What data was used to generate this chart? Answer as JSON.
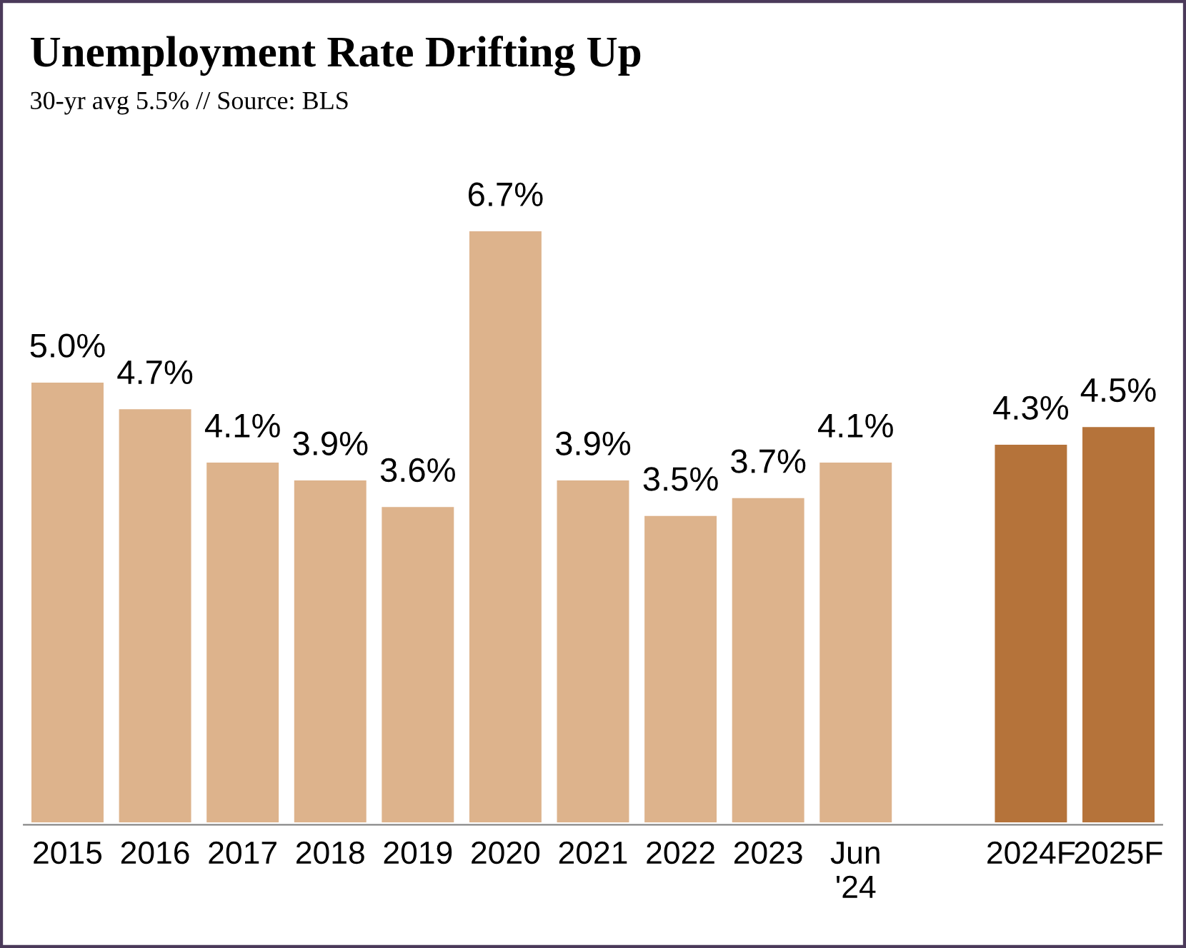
{
  "chart_data": {
    "type": "bar",
    "title": "Unemployment Rate Drifting Up",
    "subtitle": "30-yr avg 5.5% // Source: BLS",
    "categories": [
      "2015",
      "2016",
      "2017",
      "2018",
      "2019",
      "2020",
      "2021",
      "2022",
      "2023",
      "Jun\n'24",
      null,
      "2024F",
      "2025F"
    ],
    "values": [
      5.0,
      4.7,
      4.1,
      3.9,
      3.6,
      6.7,
      3.9,
      3.5,
      3.7,
      4.1,
      null,
      4.3,
      4.5
    ],
    "value_labels": [
      "5.0%",
      "4.7%",
      "4.1%",
      "3.9%",
      "3.6%",
      "6.7%",
      "3.9%",
      "3.5%",
      "3.7%",
      "4.1%",
      null,
      "4.3%",
      "4.5%"
    ],
    "colors": [
      "#ddb38c",
      "#ddb38c",
      "#ddb38c",
      "#ddb38c",
      "#ddb38c",
      "#ddb38c",
      "#ddb38c",
      "#ddb38c",
      "#ddb38c",
      "#ddb38c",
      "#ddb38c",
      "#b5733a",
      "#b5733a"
    ],
    "grid": false,
    "legend": false
  }
}
